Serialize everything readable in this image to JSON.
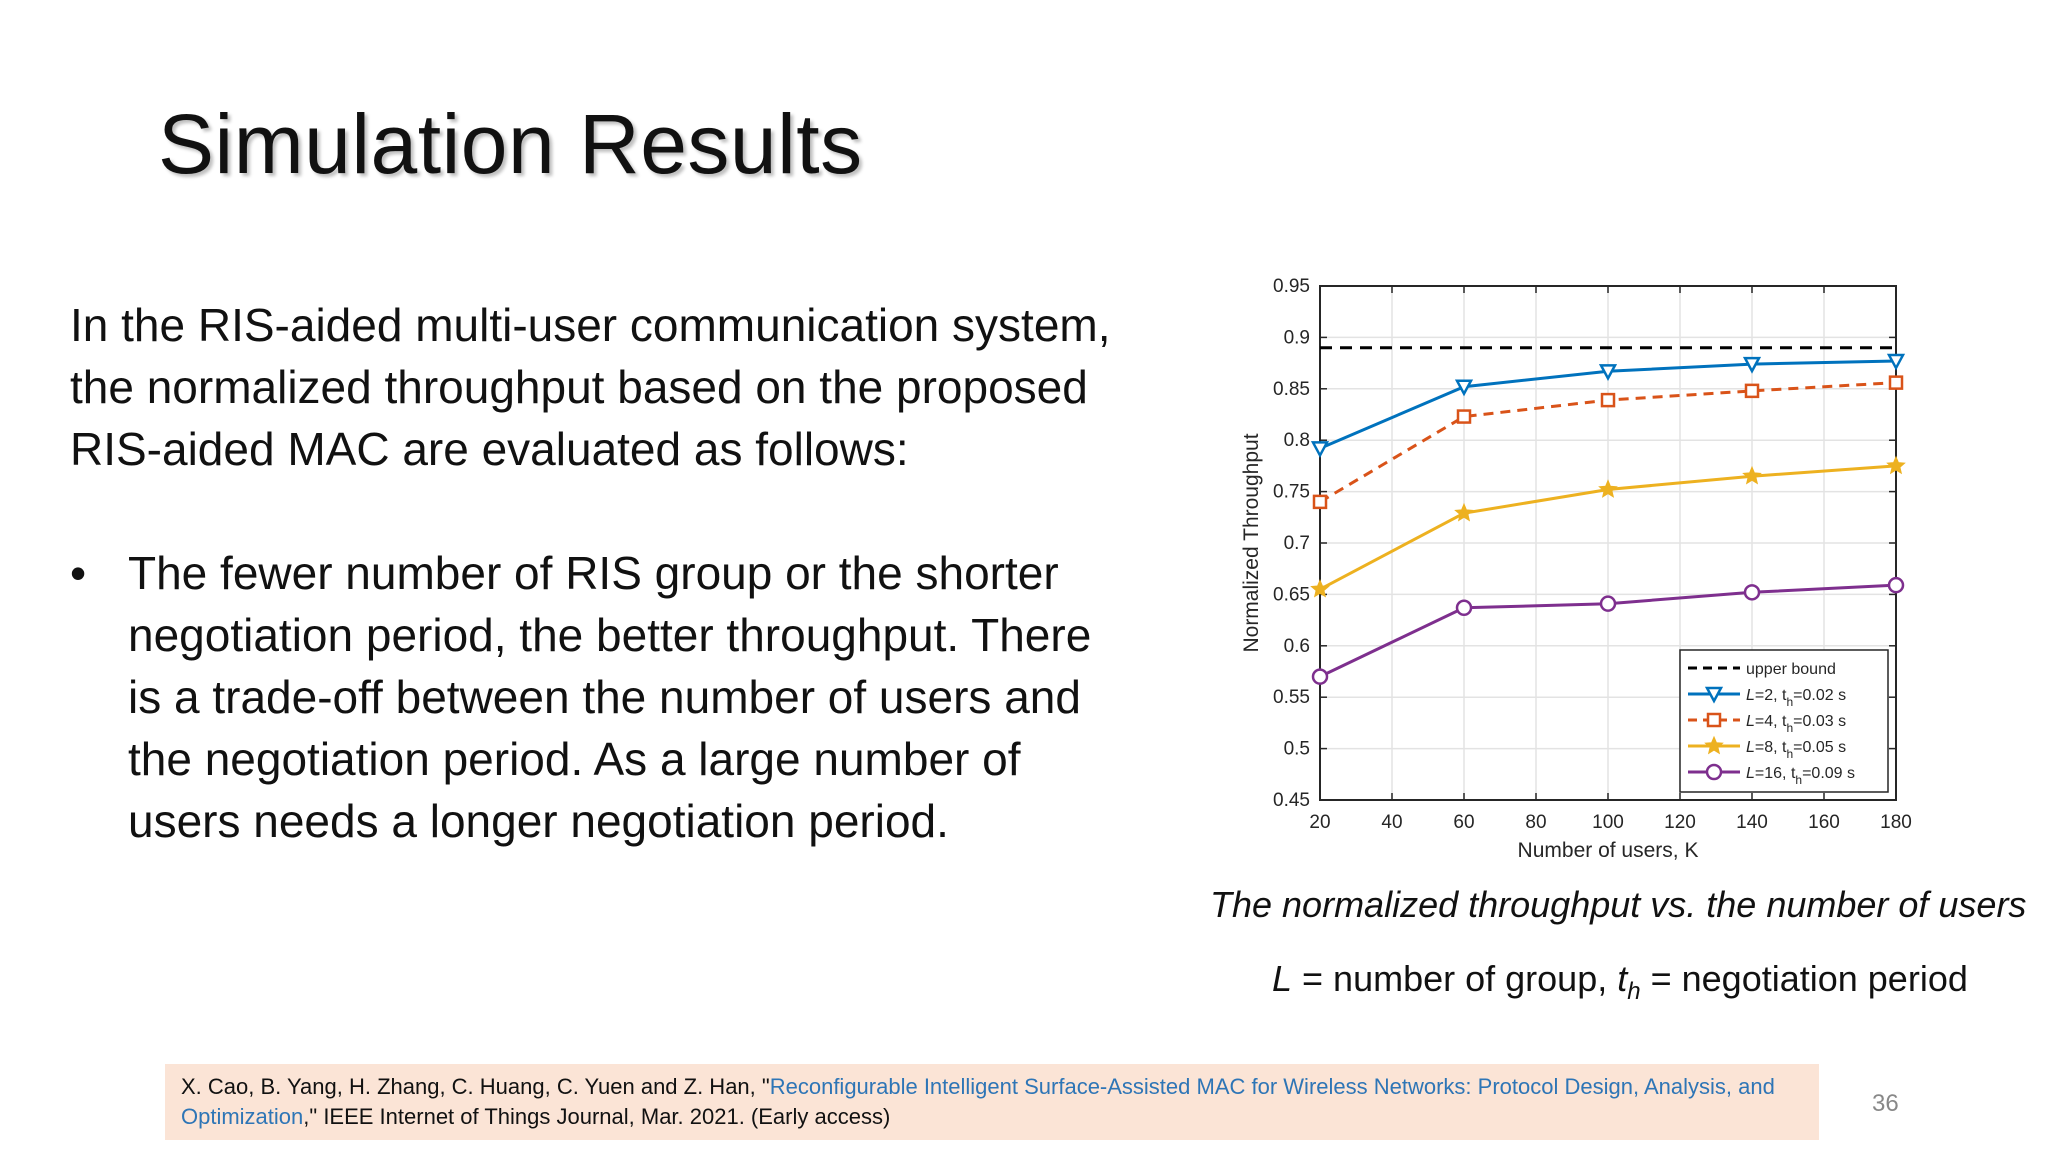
{
  "slide": {
    "title": "Simulation Results",
    "intro_lines": [
      "In the RIS-aided multi-user communication system,",
      "the normalized throughput based on the proposed",
      "RIS-aided MAC are evaluated as follows:"
    ],
    "bullet_symbol": "•",
    "bullet_lines": [
      "The fewer number of RIS group or the shorter",
      "negotiation period, the better throughput. There",
      "is a trade-off between the number of users and",
      "the negotiation period. As a large number of",
      "users needs a longer negotiation period."
    ],
    "caption": "The normalized throughput vs. the number of users",
    "note": {
      "l_symbol": "L",
      "l_text": " = number of group, ",
      "t_symbol": "t",
      "t_sub": "h",
      "t_text": " = negotiation period"
    },
    "reference": {
      "prefix": "X. Cao, B. Yang, H. Zhang, C. Huang, C. Yuen and Z. Han, \"",
      "link_text": "Reconfigurable Intelligent Surface-Assisted MAC for Wireless Networks: Protocol Design, Analysis, and Optimization",
      "suffix": ",\" IEEE Internet of Things Journal, Mar. 2021. (Early access)"
    },
    "page_number": "36",
    "colors": {
      "reference_bg": "#fbe4d6",
      "link": "#2e75b6"
    }
  },
  "chart_data": {
    "type": "line",
    "title": "",
    "xlabel": "Number of users, K",
    "ylabel": "Normalized Throughput",
    "x": [
      20,
      60,
      100,
      140,
      180
    ],
    "xlim": [
      20,
      180
    ],
    "ylim": [
      0.45,
      0.95
    ],
    "xticks": [
      20,
      40,
      60,
      80,
      100,
      120,
      140,
      160,
      180
    ],
    "yticks": [
      0.45,
      0.5,
      0.55,
      0.6,
      0.65,
      0.7,
      0.75,
      0.8,
      0.85,
      0.9,
      0.95
    ],
    "ytick_labels": [
      "0.45",
      "0.5",
      "0.55",
      "0.6",
      "0.65",
      "0.7",
      "0.75",
      "0.8",
      "0.85",
      "0.9",
      "0.95"
    ],
    "grid": true,
    "legend_position": "bottom-right",
    "series": [
      {
        "name": "upper bound",
        "legend_label": "upper bound",
        "values": [
          0.89,
          0.89,
          0.89,
          0.89,
          0.89
        ],
        "color": "#000000",
        "dash": "dashed",
        "marker": "none"
      },
      {
        "name": "L=2, th=0.02 s",
        "legend_label": "L=2, t",
        "legend_sub": "h",
        "legend_tail": "=0.02 s",
        "values": [
          0.792,
          0.852,
          0.867,
          0.874,
          0.877
        ],
        "color": "#0072bd",
        "dash": "solid",
        "marker": "triangle-down"
      },
      {
        "name": "L=4, th=0.03 s",
        "legend_label": "L=4, t",
        "legend_sub": "h",
        "legend_tail": "=0.03 s",
        "values": [
          0.74,
          0.823,
          0.839,
          0.848,
          0.856
        ],
        "color": "#d95319",
        "dash": "dashed",
        "marker": "square"
      },
      {
        "name": "L=8, th=0.05 s",
        "legend_label": "L=8, t",
        "legend_sub": "h",
        "legend_tail": "=0.05 s",
        "values": [
          0.655,
          0.729,
          0.752,
          0.765,
          0.775
        ],
        "color": "#edb120",
        "dash": "solid",
        "marker": "star"
      },
      {
        "name": "L=16, th=0.09 s",
        "legend_label": "L=16, t",
        "legend_sub": "h",
        "legend_tail": "=0.09 s",
        "values": [
          0.57,
          0.637,
          0.641,
          0.652,
          0.659
        ],
        "color": "#7e2f8e",
        "dash": "solid",
        "marker": "circle"
      }
    ]
  }
}
